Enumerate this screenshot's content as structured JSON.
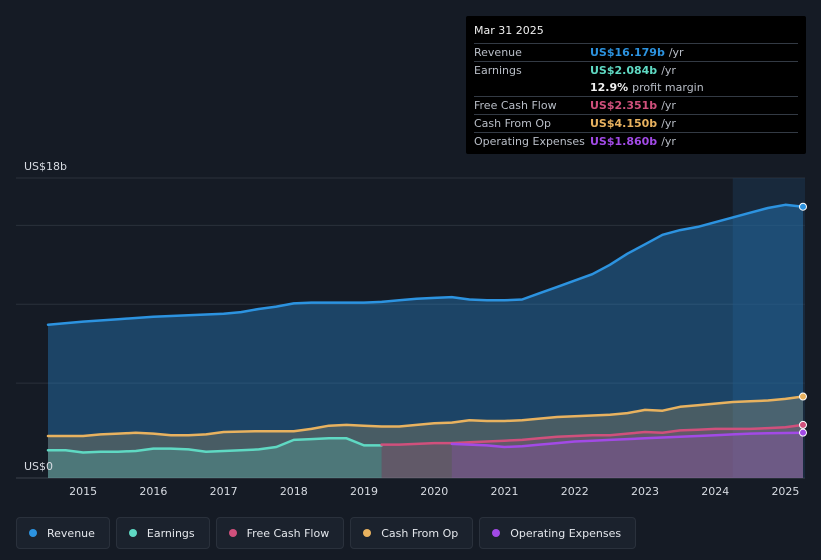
{
  "colors": {
    "revenue": "#2c93e0",
    "earnings": "#5fd9c3",
    "free_cash_flow": "#d0507c",
    "cash_from_op": "#e8b25f",
    "operating_expenses": "#a24ae6"
  },
  "tooltip": {
    "date": "Mar 31 2025",
    "rows": [
      {
        "label": "Revenue",
        "value": "US$16.179b",
        "unit": "/yr"
      },
      {
        "label": "Earnings",
        "value": "US$2.084b",
        "unit": "/yr"
      },
      {
        "label": "",
        "value": "12.9%",
        "unit": "profit margin"
      },
      {
        "label": "Free Cash Flow",
        "value": "US$2.351b",
        "unit": "/yr"
      },
      {
        "label": "Cash From Op",
        "value": "US$4.150b",
        "unit": "/yr"
      },
      {
        "label": "Operating Expenses",
        "value": "US$1.860b",
        "unit": "/yr"
      }
    ]
  },
  "legend": [
    {
      "label": "Revenue",
      "series": "revenue"
    },
    {
      "label": "Earnings",
      "series": "earnings"
    },
    {
      "label": "Free Cash Flow",
      "series": "free_cash_flow"
    },
    {
      "label": "Cash From Op",
      "series": "cash_from_op"
    },
    {
      "label": "Operating Expenses",
      "series": "operating_expenses"
    }
  ],
  "chart_data": {
    "type": "area",
    "title": "",
    "y_top_label": "US$18b",
    "y_bottom_label": "US$0",
    "ylim": [
      0,
      18
    ],
    "xlim": [
      2014.5,
      2025.25
    ],
    "x_ticks": [
      2015,
      2016,
      2017,
      2018,
      2019,
      2020,
      2021,
      2022,
      2023,
      2024,
      2025
    ],
    "x_tick_labels": [
      "2015",
      "2016",
      "2017",
      "2018",
      "2019",
      "2020",
      "2021",
      "2022",
      "2023",
      "2024",
      "2025"
    ],
    "gridlines_y": [
      0,
      5,
      10,
      15,
      18
    ],
    "highlight_from": 2024.25,
    "series": [
      {
        "key": "revenue",
        "name": "Revenue",
        "x": [
          2014.5,
          2015.0,
          2015.5,
          2016.0,
          2016.5,
          2017.0,
          2017.25,
          2017.5,
          2017.75,
          2018.0,
          2018.25,
          2018.5,
          2018.75,
          2019.0,
          2019.25,
          2019.5,
          2019.75,
          2020.0,
          2020.25,
          2020.5,
          2020.75,
          2021.0,
          2021.25,
          2021.5,
          2021.75,
          2022.0,
          2022.25,
          2022.5,
          2022.75,
          2023.0,
          2023.25,
          2023.5,
          2023.75,
          2024.0,
          2024.25,
          2024.5,
          2024.75,
          2025.0,
          2025.25
        ],
        "values": [
          8.7,
          8.9,
          9.05,
          9.2,
          9.3,
          9.4,
          9.5,
          9.7,
          9.85,
          10.05,
          10.1,
          10.1,
          10.1,
          10.1,
          10.15,
          10.25,
          10.35,
          10.4,
          10.45,
          10.3,
          10.25,
          10.25,
          10.3,
          10.7,
          11.1,
          11.5,
          11.9,
          12.5,
          13.2,
          13.8,
          14.4,
          14.7,
          14.9,
          15.2,
          15.5,
          15.8,
          16.1,
          16.3,
          16.179
        ]
      },
      {
        "key": "cash_from_op",
        "name": "Cash From Op",
        "x": [
          2014.5,
          2015.0,
          2015.25,
          2015.5,
          2015.75,
          2016.0,
          2016.25,
          2016.5,
          2016.75,
          2017.0,
          2017.5,
          2018.0,
          2018.25,
          2018.5,
          2018.75,
          2019.0,
          2019.25,
          2019.5,
          2019.75,
          2020.0,
          2020.25,
          2020.5,
          2020.75,
          2021.0,
          2021.25,
          2021.5,
          2021.75,
          2022.0,
          2022.25,
          2022.5,
          2022.75,
          2023.0,
          2023.25,
          2023.5,
          2023.75,
          2024.0,
          2024.25,
          2024.5,
          2024.75,
          2025.0,
          2025.25
        ],
        "values": [
          1.65,
          1.65,
          1.75,
          1.8,
          1.85,
          1.8,
          1.7,
          1.7,
          1.75,
          1.9,
          1.95,
          1.95,
          2.1,
          2.3,
          2.35,
          2.3,
          2.25,
          2.25,
          2.35,
          2.45,
          2.5,
          2.65,
          2.6,
          2.6,
          2.65,
          2.75,
          2.85,
          2.9,
          2.95,
          3.0,
          3.1,
          3.3,
          3.25,
          3.5,
          3.6,
          3.7,
          3.8,
          3.85,
          3.9,
          4.0,
          4.15
        ]
      },
      {
        "key": "earnings",
        "name": "Earnings",
        "x": [
          2014.5,
          2014.75,
          2015.0,
          2015.25,
          2015.5,
          2015.75,
          2016.0,
          2016.25,
          2016.5,
          2016.75,
          2017.0,
          2017.25,
          2017.5,
          2017.75,
          2018.0,
          2018.25,
          2018.5,
          2018.75,
          2019.0,
          2019.25
        ],
        "values": [
          0.75,
          0.75,
          0.6,
          0.65,
          0.65,
          0.7,
          0.85,
          0.85,
          0.8,
          0.65,
          0.7,
          0.75,
          0.8,
          0.95,
          1.4,
          1.45,
          1.5,
          1.5,
          1.05,
          1.05
        ]
      },
      {
        "key": "free_cash_flow",
        "name": "Free Cash Flow",
        "x": [
          2019.25,
          2019.5,
          2019.75,
          2020.0,
          2020.25,
          2020.5,
          2020.75,
          2021.0,
          2021.25,
          2021.5,
          2021.75,
          2022.0,
          2022.25,
          2022.5,
          2022.75,
          2023.0,
          2023.25,
          2023.5,
          2023.75,
          2024.0,
          2024.25,
          2024.5,
          2024.75,
          2025.0,
          2025.25
        ],
        "values": [
          1.1,
          1.1,
          1.15,
          1.2,
          1.2,
          1.25,
          1.3,
          1.35,
          1.4,
          1.5,
          1.6,
          1.65,
          1.7,
          1.7,
          1.8,
          1.9,
          1.85,
          2.0,
          2.05,
          2.1,
          2.1,
          2.1,
          2.15,
          2.2,
          2.351
        ]
      },
      {
        "key": "operating_expenses",
        "name": "Operating Expenses",
        "x": [
          2020.25,
          2020.5,
          2020.75,
          2021.0,
          2021.25,
          2021.5,
          2021.75,
          2022.0,
          2022.25,
          2022.5,
          2022.75,
          2023.0,
          2023.25,
          2023.5,
          2023.75,
          2024.0,
          2024.25,
          2024.5,
          2024.75,
          2025.0,
          2025.25
        ],
        "values": [
          1.15,
          1.1,
          1.05,
          0.95,
          1.0,
          1.1,
          1.2,
          1.3,
          1.35,
          1.4,
          1.45,
          1.5,
          1.55,
          1.6,
          1.65,
          1.7,
          1.75,
          1.8,
          1.82,
          1.84,
          1.86
        ]
      }
    ]
  }
}
